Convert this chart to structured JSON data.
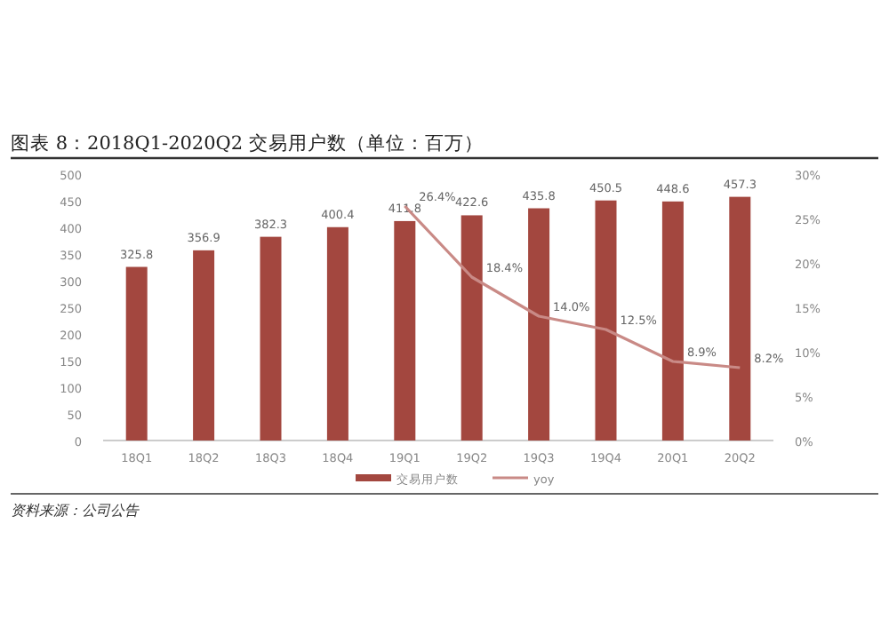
{
  "chart_data": {
    "type": "bar",
    "title": "图表 8：2018Q1-2020Q2 交易用户数（单位：百万）",
    "categories": [
      "18Q1",
      "18Q2",
      "18Q3",
      "18Q4",
      "19Q1",
      "19Q2",
      "19Q3",
      "19Q4",
      "20Q1",
      "20Q2"
    ],
    "series": [
      {
        "name": "交易用户数",
        "color": "#a3473f",
        "values": [
          325.8,
          356.9,
          382.3,
          400.4,
          411.8,
          422.6,
          435.8,
          450.5,
          448.6,
          457.3
        ],
        "value_labels": [
          "325.8",
          "356.9",
          "382.3",
          "400.4",
          "411.8",
          "422.6",
          "435.8",
          "450.5",
          "448.6",
          "457.3"
        ]
      },
      {
        "name": "yoy",
        "type": "line",
        "axis": "y2",
        "color": "#c98a86",
        "values": [
          null,
          null,
          null,
          null,
          26.4,
          18.4,
          14.0,
          12.5,
          8.9,
          8.2
        ],
        "value_labels": [
          null,
          null,
          null,
          null,
          "26.4%",
          "18.4%",
          "14.0%",
          "12.5%",
          "8.9%",
          "8.2%"
        ]
      }
    ],
    "ylim": [
      0,
      500
    ],
    "yticks": [
      0,
      50,
      100,
      150,
      200,
      250,
      300,
      350,
      400,
      450,
      500
    ],
    "y2lim": [
      0,
      30
    ],
    "y2ticks": [
      {
        "value": 0,
        "label": "0%"
      },
      {
        "value": 5,
        "label": "5%"
      },
      {
        "value": 10,
        "label": "10%"
      },
      {
        "value": 15,
        "label": "15%"
      },
      {
        "value": 20,
        "label": "20%"
      },
      {
        "value": 25,
        "label": "25%"
      },
      {
        "value": 30,
        "label": "30%"
      }
    ],
    "grid": false,
    "legend": "bottom",
    "annotations": [
      "资料来源：公司公告"
    ]
  }
}
